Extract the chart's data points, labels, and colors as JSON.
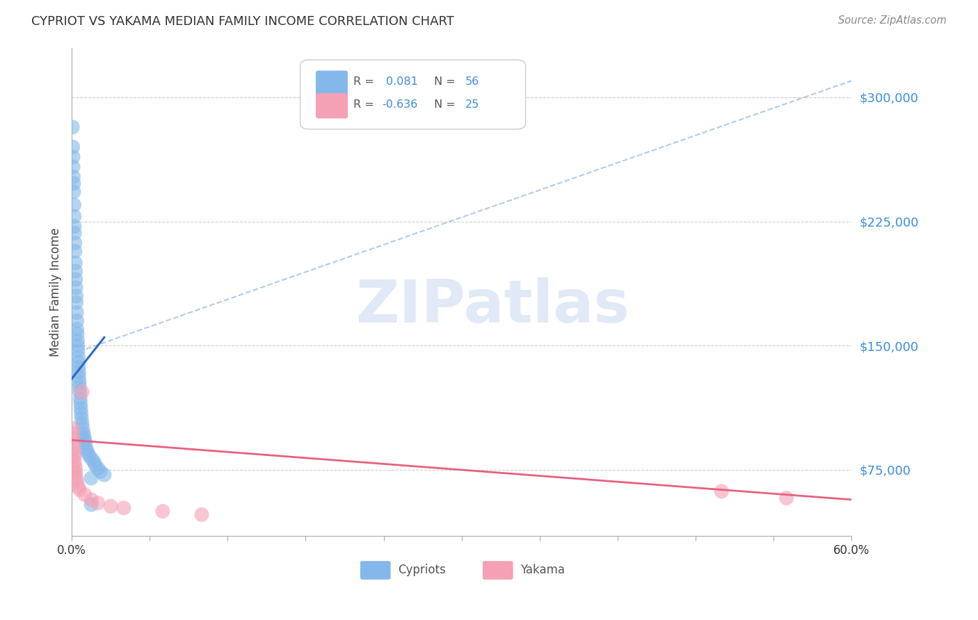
{
  "title": "CYPRIOT VS YAKAMA MEDIAN FAMILY INCOME CORRELATION CHART",
  "source": "Source: ZipAtlas.com",
  "ylabel": "Median Family Income",
  "yticks": [
    75000,
    150000,
    225000,
    300000
  ],
  "ytick_labels": [
    "$75,000",
    "$150,000",
    "$225,000",
    "$300,000"
  ],
  "xmin": 0.0,
  "xmax": 60.0,
  "ymin": 35000,
  "ymax": 330000,
  "r_cypriot": 0.081,
  "n_cypriot": 56,
  "r_yakama": -0.636,
  "n_yakama": 25,
  "color_cypriot": "#85B8EA",
  "color_yakama": "#F4A0B5",
  "color_cypriot_line_solid": "#2A6BBF",
  "color_cypriot_line_dashed": "#99C0E8",
  "color_yakama_line": "#E86080",
  "watermark_text": "ZIPatlas",
  "legend_label_cypriot": "Cypriots",
  "legend_label_yakama": "Yakama",
  "cypriot_x": [
    0.05,
    0.08,
    0.1,
    0.1,
    0.12,
    0.15,
    0.15,
    0.18,
    0.2,
    0.2,
    0.22,
    0.25,
    0.25,
    0.28,
    0.3,
    0.3,
    0.32,
    0.35,
    0.35,
    0.38,
    0.4,
    0.4,
    0.42,
    0.45,
    0.45,
    0.48,
    0.5,
    0.5,
    0.52,
    0.55,
    0.55,
    0.58,
    0.6,
    0.62,
    0.65,
    0.68,
    0.7,
    0.72,
    0.75,
    0.8,
    0.85,
    0.9,
    0.95,
    1.0,
    1.05,
    1.1,
    1.2,
    1.3,
    1.5,
    1.7,
    1.8,
    2.0,
    2.2,
    2.5,
    1.5,
    1.5
  ],
  "cypriot_y": [
    282000,
    270000,
    264000,
    258000,
    252000,
    248000,
    243000,
    235000,
    228000,
    222000,
    218000,
    212000,
    207000,
    200000,
    195000,
    190000,
    185000,
    180000,
    176000,
    170000,
    165000,
    160000,
    157000,
    153000,
    150000,
    147000,
    143000,
    140000,
    137000,
    134000,
    131000,
    128000,
    125000,
    122000,
    118000,
    115000,
    112000,
    109000,
    106000,
    103000,
    100000,
    97000,
    95000,
    93000,
    91000,
    88000,
    86000,
    84000,
    82000,
    80000,
    78000,
    76000,
    74000,
    72000,
    70000,
    54000
  ],
  "yakama_x": [
    0.05,
    0.08,
    0.1,
    0.12,
    0.15,
    0.18,
    0.2,
    0.22,
    0.25,
    0.28,
    0.3,
    0.35,
    0.4,
    0.5,
    0.6,
    0.8,
    1.0,
    1.5,
    2.0,
    3.0,
    4.0,
    7.0,
    10.0,
    50.0,
    55.0
  ],
  "yakama_y": [
    100000,
    97000,
    94000,
    91000,
    88000,
    85000,
    83000,
    80000,
    77000,
    75000,
    73000,
    70000,
    68000,
    65000,
    63000,
    122000,
    60000,
    57000,
    55000,
    53000,
    52000,
    50000,
    48000,
    62000,
    58000
  ],
  "blue_dashed_x0": 0.0,
  "blue_dashed_y0": 145000,
  "blue_dashed_x1": 60.0,
  "blue_dashed_y1": 310000,
  "blue_solid_x0": 0.0,
  "blue_solid_y0": 130000,
  "blue_solid_x1": 2.5,
  "blue_solid_y1": 155000,
  "pink_x0": 0.0,
  "pink_y0": 93000,
  "pink_x1": 60.0,
  "pink_y1": 57000
}
